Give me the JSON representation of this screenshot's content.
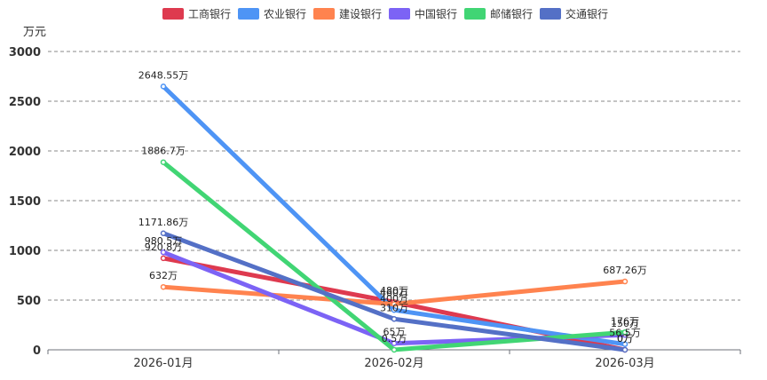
{
  "chart_data": {
    "type": "line",
    "title": "",
    "xlabel": "",
    "ylabel": "万元",
    "ylim": [
      0,
      3000
    ],
    "yticks": [
      0,
      500,
      1000,
      1500,
      2000,
      2500,
      3000
    ],
    "categories": [
      "2026-01月",
      "2026-02月",
      "2026-03月"
    ],
    "grid": true,
    "legend": "top-center",
    "series": [
      {
        "name": "工商银行",
        "color": "#de3a4f",
        "values": [
          920.8,
          480,
          0
        ],
        "labels": [
          "920.8万",
          "480万",
          "0万"
        ]
      },
      {
        "name": "农业银行",
        "color": "#4e94f5",
        "values": [
          2648.55,
          400,
          56.5
        ],
        "labels": [
          "2648.55万",
          "400万",
          "56.5万"
        ]
      },
      {
        "name": "建设银行",
        "color": "#ff834f",
        "values": [
          632,
          460,
          687.26
        ],
        "labels": [
          "632万",
          "460万",
          "687.26万"
        ]
      },
      {
        "name": "中国银行",
        "color": "#7c63f5",
        "values": [
          980.5,
          65,
          150
        ],
        "labels": [
          "980.5万",
          "65万",
          "150万"
        ]
      },
      {
        "name": "邮储银行",
        "color": "#41d574",
        "values": [
          1886.7,
          0.5,
          176
        ],
        "labels": [
          "1886.7万",
          "0.5万",
          "176万"
        ]
      },
      {
        "name": "交通银行",
        "color": "#5470c6",
        "values": [
          1171.86,
          310,
          0
        ],
        "labels": [
          "1171.86万",
          "310万",
          "0万"
        ]
      }
    ]
  }
}
